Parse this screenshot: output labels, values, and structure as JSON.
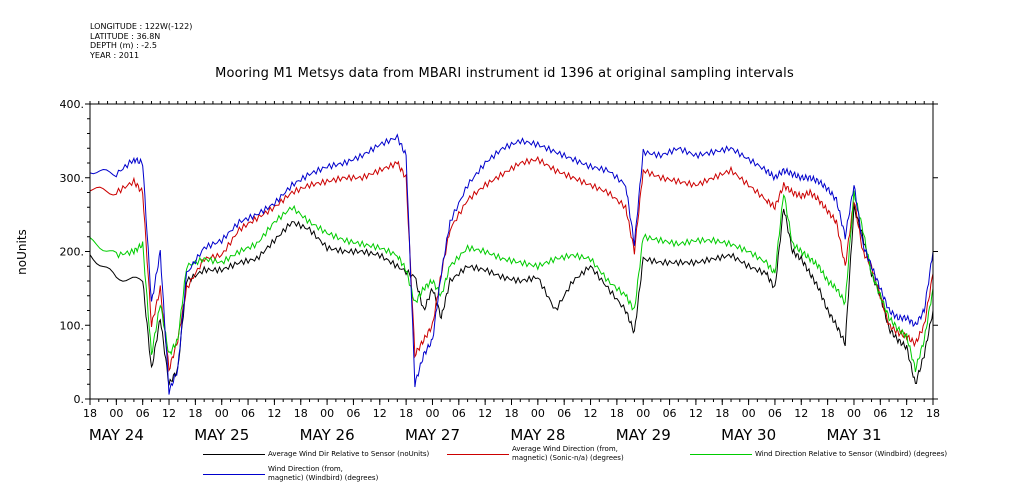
{
  "meta": {
    "longitude": "LONGITUDE : 122W(-122)",
    "latitude": "LATITUDE : 36.8N",
    "depth": "DEPTH (m) : -2.5",
    "year": "YEAR : 2011"
  },
  "chart_data": {
    "type": "line",
    "title": "Mooring M1 Metsys data from MBARI instrument id 1396 at original sampling intervals",
    "ylabel": "noUnits",
    "xlabel": "",
    "ylim": [
      0,
      400
    ],
    "yticks": [
      0,
      100,
      200,
      300,
      400
    ],
    "ytick_labels": [
      "0.",
      "100.",
      "200.",
      "300.",
      "400."
    ],
    "xlim_hours": [
      -6,
      186
    ],
    "x_hour_labels": [
      "18",
      "00",
      "06",
      "12",
      "18",
      "00",
      "06",
      "12",
      "18",
      "00",
      "06",
      "12",
      "18",
      "00",
      "06",
      "12",
      "18",
      "00",
      "06",
      "12",
      "18",
      "00",
      "06",
      "12",
      "18",
      "00",
      "06",
      "12",
      "18",
      "00",
      "06",
      "12",
      "18"
    ],
    "x_day_labels": [
      "MAY 24",
      "MAY 25",
      "MAY 26",
      "MAY 27",
      "MAY 28",
      "MAY 29",
      "MAY 30",
      "MAY 31"
    ],
    "grid": false,
    "legend_placement": "bottom",
    "series": [
      {
        "name": "Average Wind Dir Relative to Sensor (noUnits)",
        "color": "#000000",
        "points": [
          [
            -6,
            195
          ],
          [
            0,
            165
          ],
          [
            6,
            160
          ],
          [
            8,
            40
          ],
          [
            10,
            110
          ],
          [
            12,
            20
          ],
          [
            14,
            40
          ],
          [
            16,
            160
          ],
          [
            20,
            175
          ],
          [
            24,
            175
          ],
          [
            28,
            185
          ],
          [
            32,
            190
          ],
          [
            36,
            215
          ],
          [
            40,
            240
          ],
          [
            44,
            230
          ],
          [
            48,
            205
          ],
          [
            52,
            200
          ],
          [
            56,
            200
          ],
          [
            60,
            195
          ],
          [
            64,
            180
          ],
          [
            68,
            165
          ],
          [
            70,
            120
          ],
          [
            72,
            150
          ],
          [
            74,
            110
          ],
          [
            76,
            160
          ],
          [
            80,
            180
          ],
          [
            84,
            175
          ],
          [
            88,
            165
          ],
          [
            92,
            160
          ],
          [
            96,
            165
          ],
          [
            100,
            120
          ],
          [
            104,
            160
          ],
          [
            108,
            180
          ],
          [
            112,
            150
          ],
          [
            116,
            120
          ],
          [
            118,
            90
          ],
          [
            120,
            190
          ],
          [
            124,
            185
          ],
          [
            128,
            185
          ],
          [
            132,
            185
          ],
          [
            136,
            190
          ],
          [
            140,
            195
          ],
          [
            144,
            180
          ],
          [
            148,
            170
          ],
          [
            150,
            150
          ],
          [
            152,
            260
          ],
          [
            154,
            200
          ],
          [
            156,
            190
          ],
          [
            158,
            170
          ],
          [
            160,
            150
          ],
          [
            162,
            120
          ],
          [
            164,
            100
          ],
          [
            166,
            75
          ],
          [
            168,
            260
          ],
          [
            170,
            220
          ],
          [
            172,
            170
          ],
          [
            174,
            140
          ],
          [
            176,
            95
          ],
          [
            178,
            80
          ],
          [
            180,
            70
          ],
          [
            182,
            20
          ],
          [
            184,
            60
          ],
          [
            186,
            120
          ]
        ]
      },
      {
        "name": "Average Wind Direction (from, magnetic) (Sonic-n/a) (degrees)",
        "color": "#cc0000",
        "points": [
          [
            -6,
            285
          ],
          [
            0,
            280
          ],
          [
            4,
            295
          ],
          [
            6,
            280
          ],
          [
            8,
            100
          ],
          [
            10,
            150
          ],
          [
            12,
            40
          ],
          [
            14,
            80
          ],
          [
            16,
            150
          ],
          [
            20,
            190
          ],
          [
            24,
            195
          ],
          [
            28,
            230
          ],
          [
            32,
            245
          ],
          [
            36,
            260
          ],
          [
            40,
            280
          ],
          [
            44,
            290
          ],
          [
            48,
            295
          ],
          [
            52,
            300
          ],
          [
            56,
            300
          ],
          [
            60,
            310
          ],
          [
            64,
            320
          ],
          [
            66,
            300
          ],
          [
            68,
            60
          ],
          [
            70,
            80
          ],
          [
            72,
            100
          ],
          [
            74,
            170
          ],
          [
            76,
            230
          ],
          [
            80,
            270
          ],
          [
            84,
            290
          ],
          [
            88,
            305
          ],
          [
            92,
            320
          ],
          [
            96,
            325
          ],
          [
            100,
            310
          ],
          [
            104,
            300
          ],
          [
            108,
            290
          ],
          [
            112,
            280
          ],
          [
            116,
            260
          ],
          [
            118,
            200
          ],
          [
            120,
            310
          ],
          [
            124,
            300
          ],
          [
            128,
            295
          ],
          [
            132,
            290
          ],
          [
            136,
            300
          ],
          [
            140,
            310
          ],
          [
            144,
            290
          ],
          [
            148,
            270
          ],
          [
            150,
            260
          ],
          [
            152,
            290
          ],
          [
            154,
            280
          ],
          [
            156,
            275
          ],
          [
            158,
            280
          ],
          [
            160,
            270
          ],
          [
            162,
            255
          ],
          [
            164,
            240
          ],
          [
            166,
            180
          ],
          [
            168,
            270
          ],
          [
            170,
            200
          ],
          [
            172,
            180
          ],
          [
            174,
            140
          ],
          [
            176,
            100
          ],
          [
            178,
            90
          ],
          [
            180,
            85
          ],
          [
            182,
            75
          ],
          [
            184,
            100
          ],
          [
            186,
            170
          ]
        ]
      },
      {
        "name": "Wind Direction Relative to Sensor (Windbird) (degrees)",
        "color": "#00cc00",
        "points": [
          [
            -6,
            215
          ],
          [
            0,
            195
          ],
          [
            4,
            200
          ],
          [
            6,
            210
          ],
          [
            8,
            60
          ],
          [
            10,
            130
          ],
          [
            12,
            60
          ],
          [
            14,
            80
          ],
          [
            16,
            180
          ],
          [
            20,
            190
          ],
          [
            24,
            185
          ],
          [
            28,
            200
          ],
          [
            32,
            210
          ],
          [
            36,
            240
          ],
          [
            40,
            260
          ],
          [
            44,
            240
          ],
          [
            48,
            225
          ],
          [
            52,
            215
          ],
          [
            56,
            210
          ],
          [
            60,
            205
          ],
          [
            64,
            195
          ],
          [
            66,
            175
          ],
          [
            68,
            130
          ],
          [
            70,
            150
          ],
          [
            72,
            160
          ],
          [
            74,
            140
          ],
          [
            76,
            180
          ],
          [
            80,
            205
          ],
          [
            84,
            200
          ],
          [
            88,
            190
          ],
          [
            92,
            185
          ],
          [
            96,
            180
          ],
          [
            100,
            190
          ],
          [
            104,
            195
          ],
          [
            108,
            190
          ],
          [
            112,
            160
          ],
          [
            116,
            140
          ],
          [
            118,
            120
          ],
          [
            120,
            220
          ],
          [
            124,
            215
          ],
          [
            128,
            210
          ],
          [
            132,
            215
          ],
          [
            136,
            215
          ],
          [
            140,
            210
          ],
          [
            144,
            200
          ],
          [
            148,
            185
          ],
          [
            150,
            170
          ],
          [
            152,
            280
          ],
          [
            154,
            210
          ],
          [
            156,
            200
          ],
          [
            158,
            190
          ],
          [
            160,
            180
          ],
          [
            162,
            160
          ],
          [
            164,
            150
          ],
          [
            166,
            130
          ],
          [
            168,
            280
          ],
          [
            170,
            230
          ],
          [
            172,
            170
          ],
          [
            174,
            140
          ],
          [
            176,
            110
          ],
          [
            178,
            95
          ],
          [
            180,
            85
          ],
          [
            182,
            40
          ],
          [
            184,
            80
          ],
          [
            186,
            150
          ]
        ]
      },
      {
        "name": "Wind Direction (from, magnetic) (Windbird) (degrees)",
        "color": "#0000cc",
        "points": [
          [
            -6,
            310
          ],
          [
            0,
            305
          ],
          [
            4,
            325
          ],
          [
            6,
            320
          ],
          [
            8,
            130
          ],
          [
            10,
            200
          ],
          [
            12,
            10
          ],
          [
            14,
            40
          ],
          [
            16,
            170
          ],
          [
            20,
            205
          ],
          [
            24,
            215
          ],
          [
            28,
            240
          ],
          [
            32,
            250
          ],
          [
            36,
            265
          ],
          [
            40,
            290
          ],
          [
            44,
            305
          ],
          [
            48,
            315
          ],
          [
            52,
            320
          ],
          [
            56,
            330
          ],
          [
            60,
            345
          ],
          [
            64,
            355
          ],
          [
            66,
            330
          ],
          [
            68,
            20
          ],
          [
            70,
            60
          ],
          [
            72,
            80
          ],
          [
            74,
            170
          ],
          [
            76,
            240
          ],
          [
            80,
            290
          ],
          [
            84,
            320
          ],
          [
            88,
            340
          ],
          [
            92,
            350
          ],
          [
            96,
            345
          ],
          [
            100,
            335
          ],
          [
            104,
            325
          ],
          [
            108,
            315
          ],
          [
            112,
            310
          ],
          [
            116,
            290
          ],
          [
            118,
            210
          ],
          [
            120,
            335
          ],
          [
            124,
            330
          ],
          [
            128,
            340
          ],
          [
            132,
            330
          ],
          [
            136,
            335
          ],
          [
            140,
            340
          ],
          [
            144,
            325
          ],
          [
            148,
            310
          ],
          [
            150,
            300
          ],
          [
            152,
            310
          ],
          [
            154,
            305
          ],
          [
            156,
            300
          ],
          [
            158,
            300
          ],
          [
            160,
            295
          ],
          [
            162,
            285
          ],
          [
            164,
            270
          ],
          [
            166,
            220
          ],
          [
            168,
            290
          ],
          [
            170,
            210
          ],
          [
            172,
            180
          ],
          [
            174,
            150
          ],
          [
            176,
            120
          ],
          [
            178,
            110
          ],
          [
            180,
            110
          ],
          [
            182,
            100
          ],
          [
            184,
            120
          ],
          [
            186,
            200
          ]
        ]
      }
    ]
  },
  "legend": [
    {
      "label1": "Average Wind Dir Relative to Sensor (noUnits)",
      "label2": "",
      "color": "#000000"
    },
    {
      "label1": "Average Wind Direction (from,",
      "label2": "magnetic) (Sonic-n/a) (degrees)",
      "color": "#cc0000"
    },
    {
      "label1": "Wind Direction Relative to Sensor (Windbird) (degrees)",
      "label2": "",
      "color": "#00cc00"
    },
    {
      "label1": "Wind Direction (from,",
      "label2": "magnetic) (Windbird) (degrees)",
      "color": "#0000cc"
    }
  ]
}
